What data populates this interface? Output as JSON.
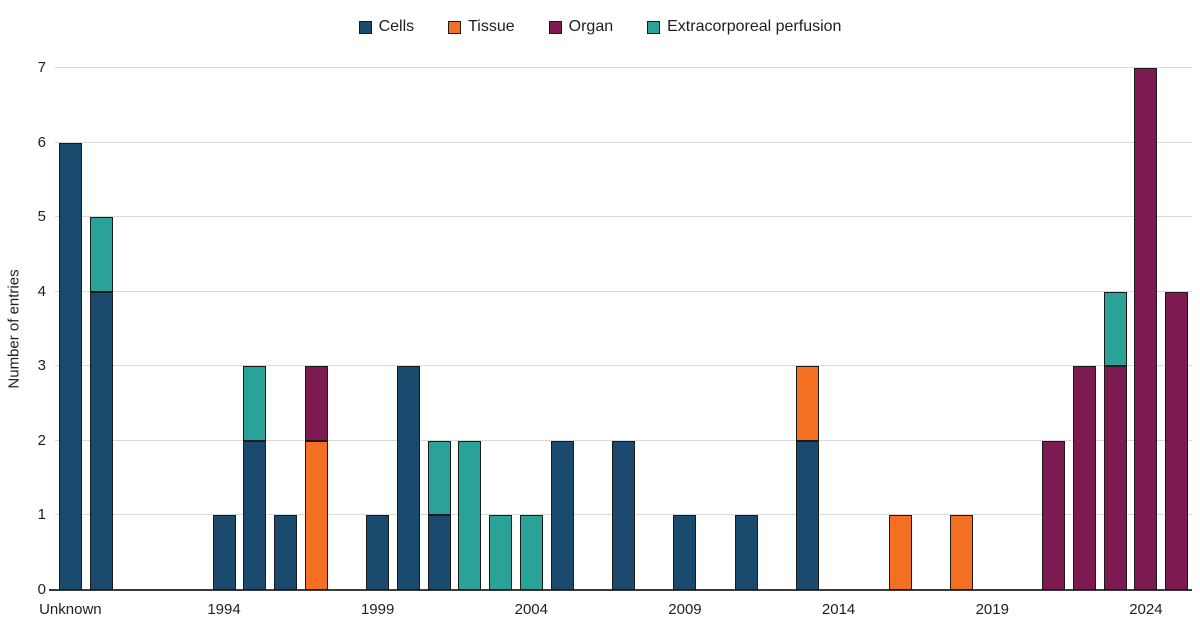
{
  "style": {
    "bar_border_color": "#1a1a1a",
    "gridline_color": "#d9d9d9",
    "axis_line_color": "#3b3b3b",
    "text_color": "#1f1f1f",
    "background": "#ffffff"
  },
  "chart_data": {
    "type": "bar",
    "stacked": true,
    "title": "",
    "xlabel": "",
    "ylabel": "Number of entries",
    "ylim": [
      0,
      7
    ],
    "yticks": [
      0,
      1,
      2,
      3,
      4,
      5,
      6,
      7
    ],
    "grid": "horizontal",
    "legend_position": "top-center",
    "categories": [
      "Unknown",
      "1990",
      "1991",
      "1992",
      "1993",
      "1994",
      "1995",
      "1996",
      "1997",
      "1998",
      "1999",
      "2000",
      "2001",
      "2002",
      "2003",
      "2004",
      "2005",
      "2006",
      "2007",
      "2008",
      "2009",
      "2010",
      "2011",
      "2012",
      "2013",
      "2014",
      "2015",
      "2016",
      "2017",
      "2018",
      "2019",
      "2020",
      "2021",
      "2022",
      "2023",
      "2024",
      "2025"
    ],
    "xticks": [
      {
        "index": 0,
        "label": "Unknown"
      },
      {
        "index": 5,
        "label": "1994"
      },
      {
        "index": 10,
        "label": "1999"
      },
      {
        "index": 15,
        "label": "2004"
      },
      {
        "index": 20,
        "label": "2009"
      },
      {
        "index": 25,
        "label": "2014"
      },
      {
        "index": 30,
        "label": "2019"
      },
      {
        "index": 35,
        "label": "2024"
      }
    ],
    "series": [
      {
        "name": "Cells",
        "color": "#1a4a6d",
        "values": [
          6,
          4,
          0,
          0,
          0,
          1,
          2,
          1,
          0,
          0,
          1,
          3,
          1,
          0,
          0,
          0,
          2,
          0,
          2,
          0,
          1,
          0,
          1,
          0,
          2,
          0,
          0,
          0,
          0,
          0,
          0,
          0,
          0,
          0,
          0,
          0,
          0
        ]
      },
      {
        "name": "Tissue",
        "color": "#f36f21",
        "values": [
          0,
          0,
          0,
          0,
          0,
          0,
          0,
          0,
          2,
          0,
          0,
          0,
          0,
          0,
          0,
          0,
          0,
          0,
          0,
          0,
          0,
          0,
          0,
          0,
          1,
          0,
          0,
          1,
          0,
          1,
          0,
          0,
          0,
          0,
          0,
          0,
          0
        ]
      },
      {
        "name": "Organ",
        "color": "#7d1a52",
        "values": [
          0,
          0,
          0,
          0,
          0,
          0,
          0,
          0,
          1,
          0,
          0,
          0,
          0,
          0,
          0,
          0,
          0,
          0,
          0,
          0,
          0,
          0,
          0,
          0,
          0,
          0,
          0,
          0,
          0,
          0,
          0,
          0,
          2,
          3,
          3,
          7,
          4
        ]
      },
      {
        "name": "Extracorporeal perfusion",
        "color": "#2ba298",
        "values": [
          0,
          1,
          0,
          0,
          0,
          0,
          1,
          0,
          0,
          0,
          0,
          0,
          1,
          2,
          1,
          1,
          0,
          0,
          0,
          0,
          0,
          0,
          0,
          0,
          0,
          0,
          0,
          0,
          0,
          0,
          0,
          0,
          0,
          0,
          1,
          0,
          0
        ]
      }
    ]
  }
}
